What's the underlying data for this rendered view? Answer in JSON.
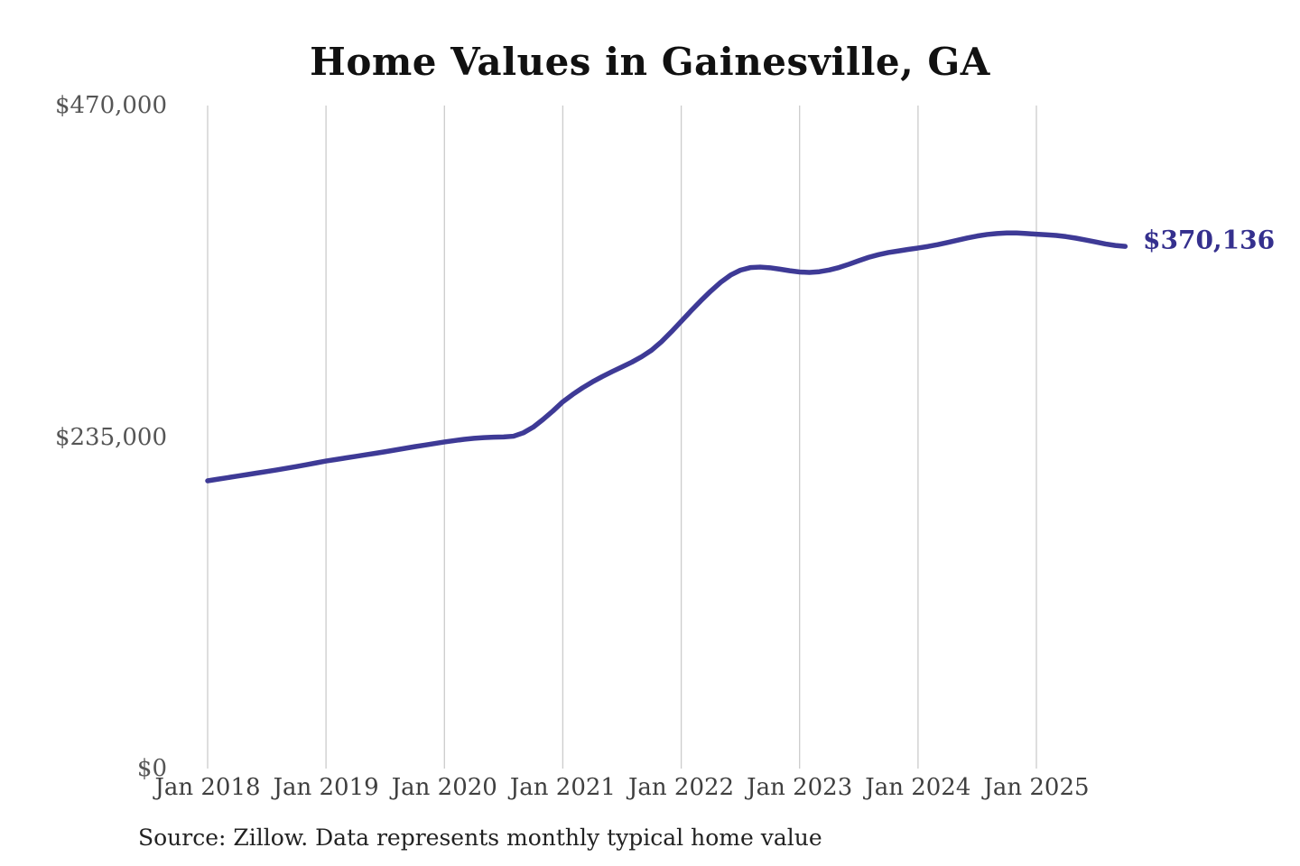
{
  "title": "Home Values in Gainesville, GA",
  "source_note": "Source: Zillow. Data represents monthly typical home value",
  "end_label": "$370,136",
  "colors": {
    "line": "#3e3a96",
    "end_label": "#35308e",
    "grid": "#cccccc",
    "title": "#111111",
    "y_tick": "#555555",
    "x_tick": "#3f3f3f",
    "source": "#222222",
    "background": "#ffffff"
  },
  "chart_data": {
    "type": "line",
    "title": "Home Values in Gainesville, GA",
    "xlabel": "",
    "ylabel": "",
    "ylim": [
      0,
      470000
    ],
    "y_ticks": [
      {
        "label": "$0",
        "value": 0
      },
      {
        "label": "$235,000",
        "value": 235000
      },
      {
        "label": "$470,000",
        "value": 470000
      }
    ],
    "x_ticks": [
      {
        "label": "Jan 2018"
      },
      {
        "label": "Jan 2019"
      },
      {
        "label": "Jan 2020"
      },
      {
        "label": "Jan 2021"
      },
      {
        "label": "Jan 2022"
      },
      {
        "label": "Jan 2023"
      },
      {
        "label": "Jan 2024"
      },
      {
        "label": "Jan 2025"
      }
    ],
    "grid": "vertical-only",
    "legend": "none",
    "x_start": "Jan 2018",
    "x_end": "Oct 2025",
    "x_interval": "monthly",
    "end_annotation": "$370,136",
    "series": [
      {
        "name": "Monthly typical home value",
        "values": [
          204000,
          205100,
          206200,
          207300,
          208400,
          209500,
          210600,
          211700,
          212900,
          214100,
          215400,
          216700,
          218000,
          219100,
          220200,
          221300,
          222400,
          223500,
          224600,
          225800,
          227000,
          228200,
          229300,
          230400,
          231500,
          232500,
          233400,
          234100,
          234600,
          234900,
          235100,
          235600,
          238000,
          242000,
          247500,
          253500,
          260000,
          265200,
          269900,
          274100,
          277900,
          281400,
          284700,
          288100,
          292000,
          296600,
          302600,
          309600,
          317000,
          324500,
          331700,
          338500,
          344700,
          349800,
          353300,
          355100,
          355500,
          355000,
          354000,
          352900,
          352000,
          351700,
          352200,
          353400,
          355200,
          357500,
          360000,
          362400,
          364300,
          365800,
          366900,
          368000,
          369000,
          370100,
          371400,
          372900,
          374500,
          376100,
          377500,
          378600,
          379300,
          379700,
          379700,
          379300,
          378800,
          378400,
          377900,
          377100,
          376000,
          374700,
          373300,
          371900,
          370800,
          370136
        ]
      }
    ]
  }
}
